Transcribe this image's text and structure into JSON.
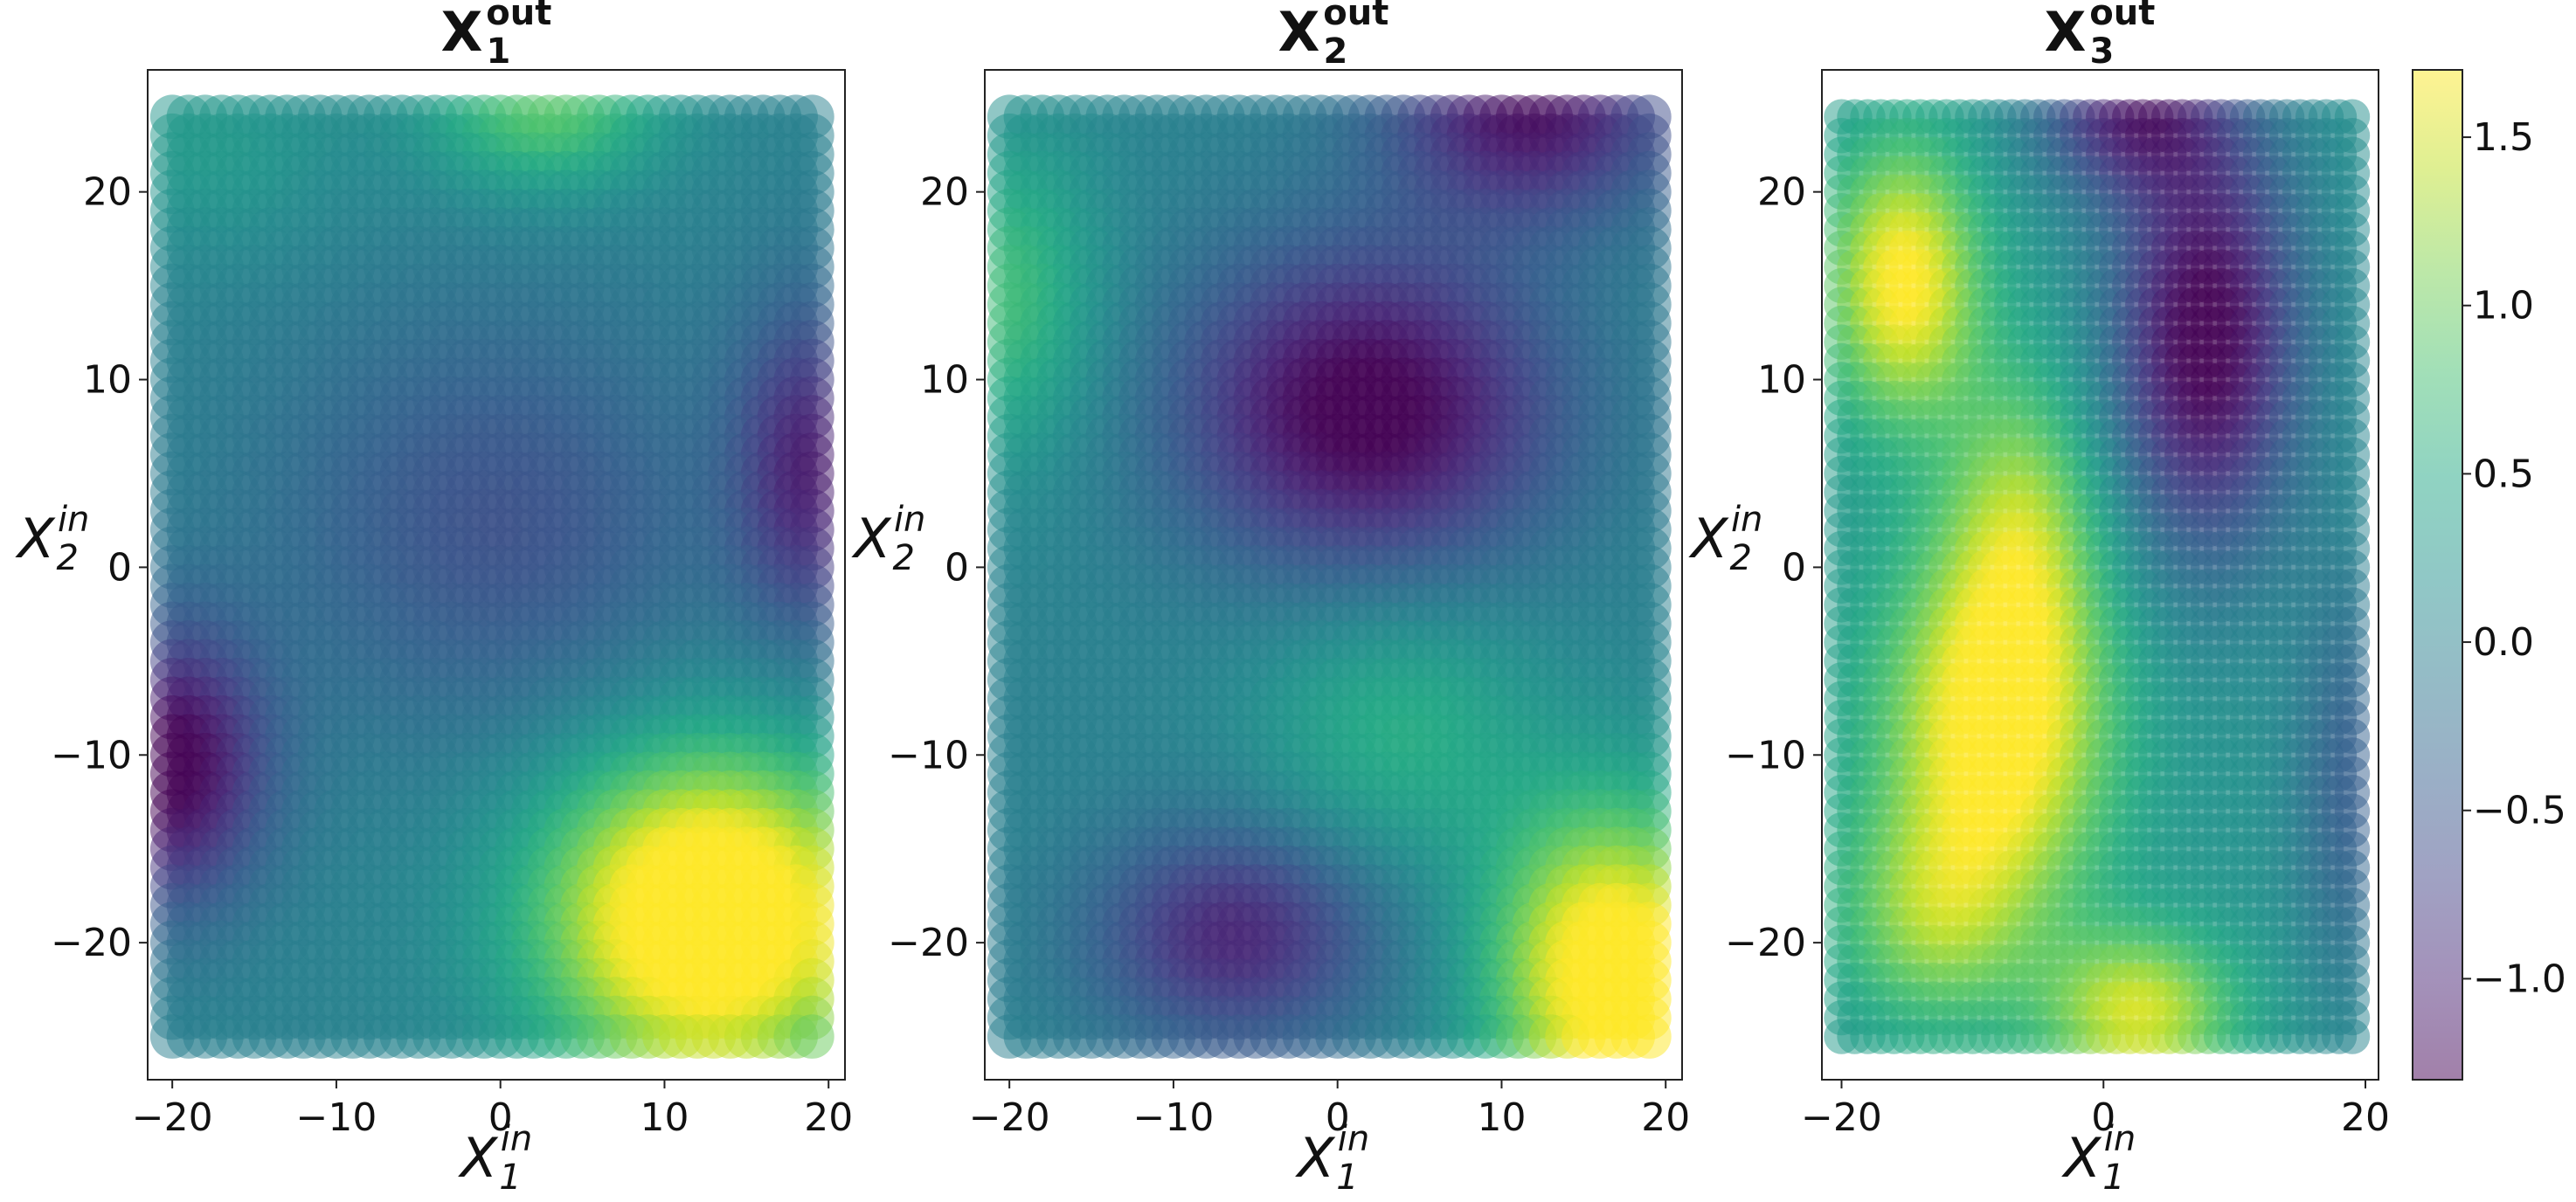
{
  "chart_data": [
    {
      "type": "scatter",
      "title": "X",
      "title_sub": "1",
      "title_sup": "out",
      "xlabel": "X",
      "xlabel_sub": "1",
      "xlabel_sup": "in",
      "ylabel": "X",
      "ylabel_sub": "2",
      "ylabel_sup": "in",
      "xlim": [
        -21.5,
        21.0
      ],
      "ylim": [
        -27.3,
        26.5
      ],
      "xticks": [
        -20,
        -10,
        0,
        10,
        20
      ],
      "xtick_labels": [
        "−20",
        "−10",
        "0",
        "10",
        "20"
      ],
      "yticks": [
        -20,
        -10,
        0,
        10,
        20
      ],
      "ytick_labels": [
        "−20",
        "−10",
        "0",
        "10",
        "20"
      ],
      "grid": false,
      "grid_points": {
        "x_range": [
          -20,
          19
        ],
        "y_range": [
          -25,
          24
        ],
        "step": 1
      },
      "field_blobs": [
        {
          "x": 13,
          "y": -19,
          "sx": 7,
          "sy": 6,
          "amp": 2.4
        },
        {
          "x": -20,
          "y": -11,
          "sx": 4,
          "sy": 5,
          "amp": -1.4
        },
        {
          "x": 19,
          "y": 5,
          "sx": 3,
          "sy": 6,
          "amp": -1.0
        },
        {
          "x": 3,
          "y": 24,
          "sx": 5,
          "sy": 3,
          "amp": 0.9
        },
        {
          "x": -18,
          "y": 22,
          "sx": 6,
          "sy": 4,
          "amp": 0.3
        },
        {
          "x": 0,
          "y": 2,
          "sx": 10,
          "sy": 8,
          "amp": -0.55
        }
      ],
      "field_base": 0.0,
      "colormap": "viridis",
      "alpha": 0.5
    },
    {
      "type": "scatter",
      "title": "X",
      "title_sub": "2",
      "title_sup": "out",
      "xlabel": "X",
      "xlabel_sub": "1",
      "xlabel_sup": "in",
      "ylabel": "X",
      "ylabel_sub": "2",
      "ylabel_sup": "in",
      "xlim": [
        -21.5,
        21.0
      ],
      "ylim": [
        -27.3,
        26.5
      ],
      "xticks": [
        -20,
        -10,
        0,
        10,
        20
      ],
      "xtick_labels": [
        "−20",
        "−10",
        "0",
        "10",
        "20"
      ],
      "yticks": [
        -20,
        -10,
        0,
        10,
        20
      ],
      "ytick_labels": [
        "−20",
        "−10",
        "0",
        "10",
        "20"
      ],
      "grid": false,
      "grid_points": {
        "x_range": [
          -20,
          19
        ],
        "y_range": [
          -25,
          24
        ],
        "step": 1
      },
      "field_blobs": [
        {
          "x": 17,
          "y": -22,
          "sx": 5,
          "sy": 6,
          "amp": 2.1
        },
        {
          "x": 2,
          "y": 8,
          "sx": 8,
          "sy": 6,
          "amp": -1.4
        },
        {
          "x": 12,
          "y": 24,
          "sx": 6,
          "sy": 4,
          "amp": -1.2
        },
        {
          "x": -6,
          "y": -20,
          "sx": 6,
          "sy": 4,
          "amp": -1.0
        },
        {
          "x": -20,
          "y": 14,
          "sx": 4,
          "sy": 6,
          "amp": 0.75
        },
        {
          "x": 4,
          "y": -9,
          "sx": 6,
          "sy": 5,
          "amp": 0.55
        }
      ],
      "field_base": 0.0,
      "colormap": "viridis",
      "alpha": 0.5
    },
    {
      "type": "scatter",
      "title": "X",
      "title_sub": "3",
      "title_sup": "out",
      "xlabel": "X",
      "xlabel_sub": "1",
      "xlabel_sup": "in",
      "ylabel": "X",
      "ylabel_sub": "2",
      "ylabel_sup": "in",
      "xlim": [
        -21.5,
        21.0
      ],
      "ylim": [
        -27.3,
        26.5
      ],
      "xticks": [
        -20,
        0,
        20
      ],
      "xtick_labels": [
        "−20",
        "0",
        "20"
      ],
      "yticks": [
        -20,
        -10,
        0,
        10,
        20
      ],
      "ytick_labels": [
        "−20",
        "−10",
        "0",
        "10",
        "20"
      ],
      "grid": false,
      "grid_points": {
        "x_range": [
          -20,
          19
        ],
        "y_range": [
          -25,
          24
        ],
        "step": 1
      },
      "field_blobs": [
        {
          "x": -15,
          "y": 15,
          "sx": 4,
          "sy": 5,
          "amp": 1.6
        },
        {
          "x": -8,
          "y": -9,
          "sx": 6,
          "sy": 7,
          "amp": 1.7
        },
        {
          "x": 3,
          "y": -24,
          "sx": 5,
          "sy": 3,
          "amp": 1.3
        },
        {
          "x": -13,
          "y": -19,
          "sx": 5,
          "sy": 4,
          "amp": 0.8
        },
        {
          "x": 8,
          "y": 12,
          "sx": 5,
          "sy": 8,
          "amp": -1.6
        },
        {
          "x": 2,
          "y": 24,
          "sx": 5,
          "sy": 3,
          "amp": -1.1
        },
        {
          "x": 19,
          "y": -12,
          "sx": 3,
          "sy": 8,
          "amp": -0.6
        },
        {
          "x": -6,
          "y": 2,
          "sx": 4,
          "sy": 6,
          "amp": 0.9
        }
      ],
      "field_base": 0.2,
      "colormap": "viridis",
      "alpha": 0.5
    }
  ],
  "colorbar": {
    "vmin": -1.3,
    "vmax": 1.7,
    "ticks": [
      -1.0,
      -0.5,
      0.0,
      0.5,
      1.0,
      1.5
    ],
    "tick_labels": [
      "−1.0",
      "−0.5",
      "0.0",
      "0.5",
      "1.0",
      "1.5"
    ],
    "colormap": "viridis",
    "alpha": 0.5
  }
}
